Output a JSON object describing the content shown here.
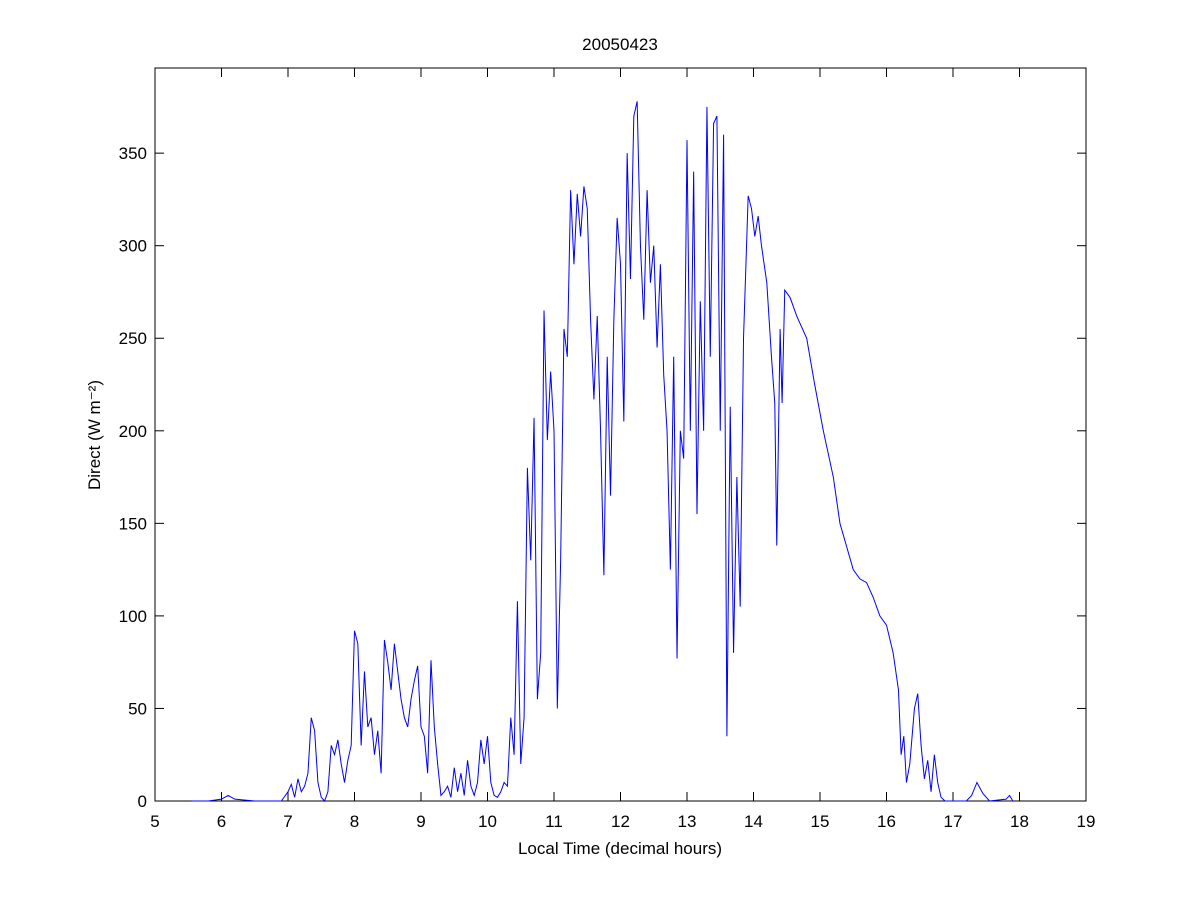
{
  "chart_data": {
    "type": "line",
    "title": "20050423",
    "xlabel": "Local Time (decimal hours)",
    "ylabel": "Direct (W m⁻²)",
    "x": [
      5.55,
      5.8,
      6.0,
      6.1,
      6.2,
      6.5,
      6.9,
      7.0,
      7.05,
      7.1,
      7.15,
      7.2,
      7.25,
      7.3,
      7.35,
      7.4,
      7.45,
      7.5,
      7.55,
      7.6,
      7.65,
      7.7,
      7.75,
      7.8,
      7.85,
      7.9,
      7.95,
      8.0,
      8.05,
      8.1,
      8.15,
      8.2,
      8.25,
      8.3,
      8.35,
      8.4,
      8.45,
      8.5,
      8.55,
      8.6,
      8.65,
      8.7,
      8.75,
      8.8,
      8.85,
      8.9,
      8.95,
      9.0,
      9.05,
      9.1,
      9.15,
      9.2,
      9.25,
      9.3,
      9.35,
      9.4,
      9.45,
      9.5,
      9.55,
      9.6,
      9.65,
      9.7,
      9.75,
      9.8,
      9.85,
      9.9,
      9.95,
      10.0,
      10.05,
      10.1,
      10.15,
      10.2,
      10.25,
      10.3,
      10.35,
      10.4,
      10.45,
      10.5,
      10.55,
      10.6,
      10.65,
      10.7,
      10.75,
      10.8,
      10.85,
      10.9,
      10.95,
      11.0,
      11.05,
      11.1,
      11.15,
      11.2,
      11.25,
      11.3,
      11.35,
      11.4,
      11.45,
      11.5,
      11.55,
      11.6,
      11.65,
      11.7,
      11.75,
      11.8,
      11.85,
      11.9,
      11.95,
      12.0,
      12.05,
      12.1,
      12.15,
      12.2,
      12.25,
      12.3,
      12.35,
      12.4,
      12.45,
      12.5,
      12.55,
      12.6,
      12.65,
      12.7,
      12.75,
      12.8,
      12.85,
      12.9,
      12.95,
      13.0,
      13.05,
      13.1,
      13.15,
      13.2,
      13.25,
      13.3,
      13.35,
      13.4,
      13.45,
      13.5,
      13.55,
      13.6,
      13.65,
      13.7,
      13.75,
      13.8,
      13.85,
      13.92,
      13.97,
      14.02,
      14.07,
      14.12,
      14.2,
      14.27,
      14.32,
      14.35,
      14.4,
      14.43,
      14.47,
      14.55,
      14.65,
      14.8,
      14.92,
      15.05,
      15.2,
      15.3,
      15.38,
      15.5,
      15.6,
      15.7,
      15.8,
      15.9,
      16.0,
      16.1,
      16.18,
      16.22,
      16.26,
      16.3,
      16.35,
      16.42,
      16.47,
      16.52,
      16.57,
      16.62,
      16.67,
      16.72,
      16.77,
      16.82,
      16.88,
      17.2,
      17.28,
      17.36,
      17.45,
      17.55,
      17.8,
      17.85,
      17.9
    ],
    "series": [
      {
        "color": "#0000ff",
        "values": [
          0,
          0,
          1,
          3,
          1,
          0,
          0,
          5,
          9,
          2,
          12,
          5,
          8,
          15,
          45,
          38,
          10,
          2,
          0,
          5,
          30,
          25,
          33,
          20,
          10,
          22,
          30,
          92,
          85,
          30,
          70,
          40,
          45,
          25,
          38,
          15,
          87,
          75,
          60,
          85,
          70,
          55,
          45,
          40,
          55,
          65,
          73,
          40,
          35,
          15,
          76,
          40,
          20,
          3,
          5,
          8,
          2,
          18,
          5,
          15,
          3,
          22,
          8,
          3,
          10,
          33,
          20,
          35,
          10,
          3,
          2,
          5,
          10,
          8,
          45,
          25,
          108,
          20,
          45,
          180,
          130,
          207,
          55,
          80,
          265,
          195,
          232,
          200,
          50,
          130,
          255,
          240,
          330,
          290,
          328,
          305,
          332,
          320,
          260,
          217,
          262,
          200,
          122,
          240,
          165,
          260,
          315,
          290,
          205,
          350,
          282,
          370,
          378,
          300,
          260,
          330,
          280,
          300,
          245,
          290,
          230,
          200,
          125,
          240,
          77,
          200,
          185,
          357,
          200,
          340,
          155,
          270,
          200,
          375,
          240,
          366,
          370,
          200,
          360,
          35,
          213,
          80,
          175,
          105,
          250,
          327,
          320,
          305,
          316,
          300,
          280,
          240,
          215,
          138,
          255,
          215,
          276,
          272,
          262,
          250,
          225,
          200,
          175,
          150,
          140,
          125,
          120,
          118,
          110,
          100,
          95,
          80,
          60,
          25,
          35,
          10,
          20,
          50,
          58,
          30,
          12,
          22,
          5,
          25,
          10,
          2,
          0,
          0,
          3,
          10,
          4,
          0,
          1,
          3,
          0
        ]
      }
    ],
    "xlim": [
      5,
      19
    ],
    "xticks": [
      5,
      6,
      7,
      8,
      9,
      10,
      11,
      12,
      13,
      14,
      15,
      16,
      17,
      18,
      19
    ],
    "ylim": [
      0,
      396
    ],
    "yticks": [
      0,
      50,
      100,
      150,
      200,
      250,
      300,
      350
    ]
  }
}
